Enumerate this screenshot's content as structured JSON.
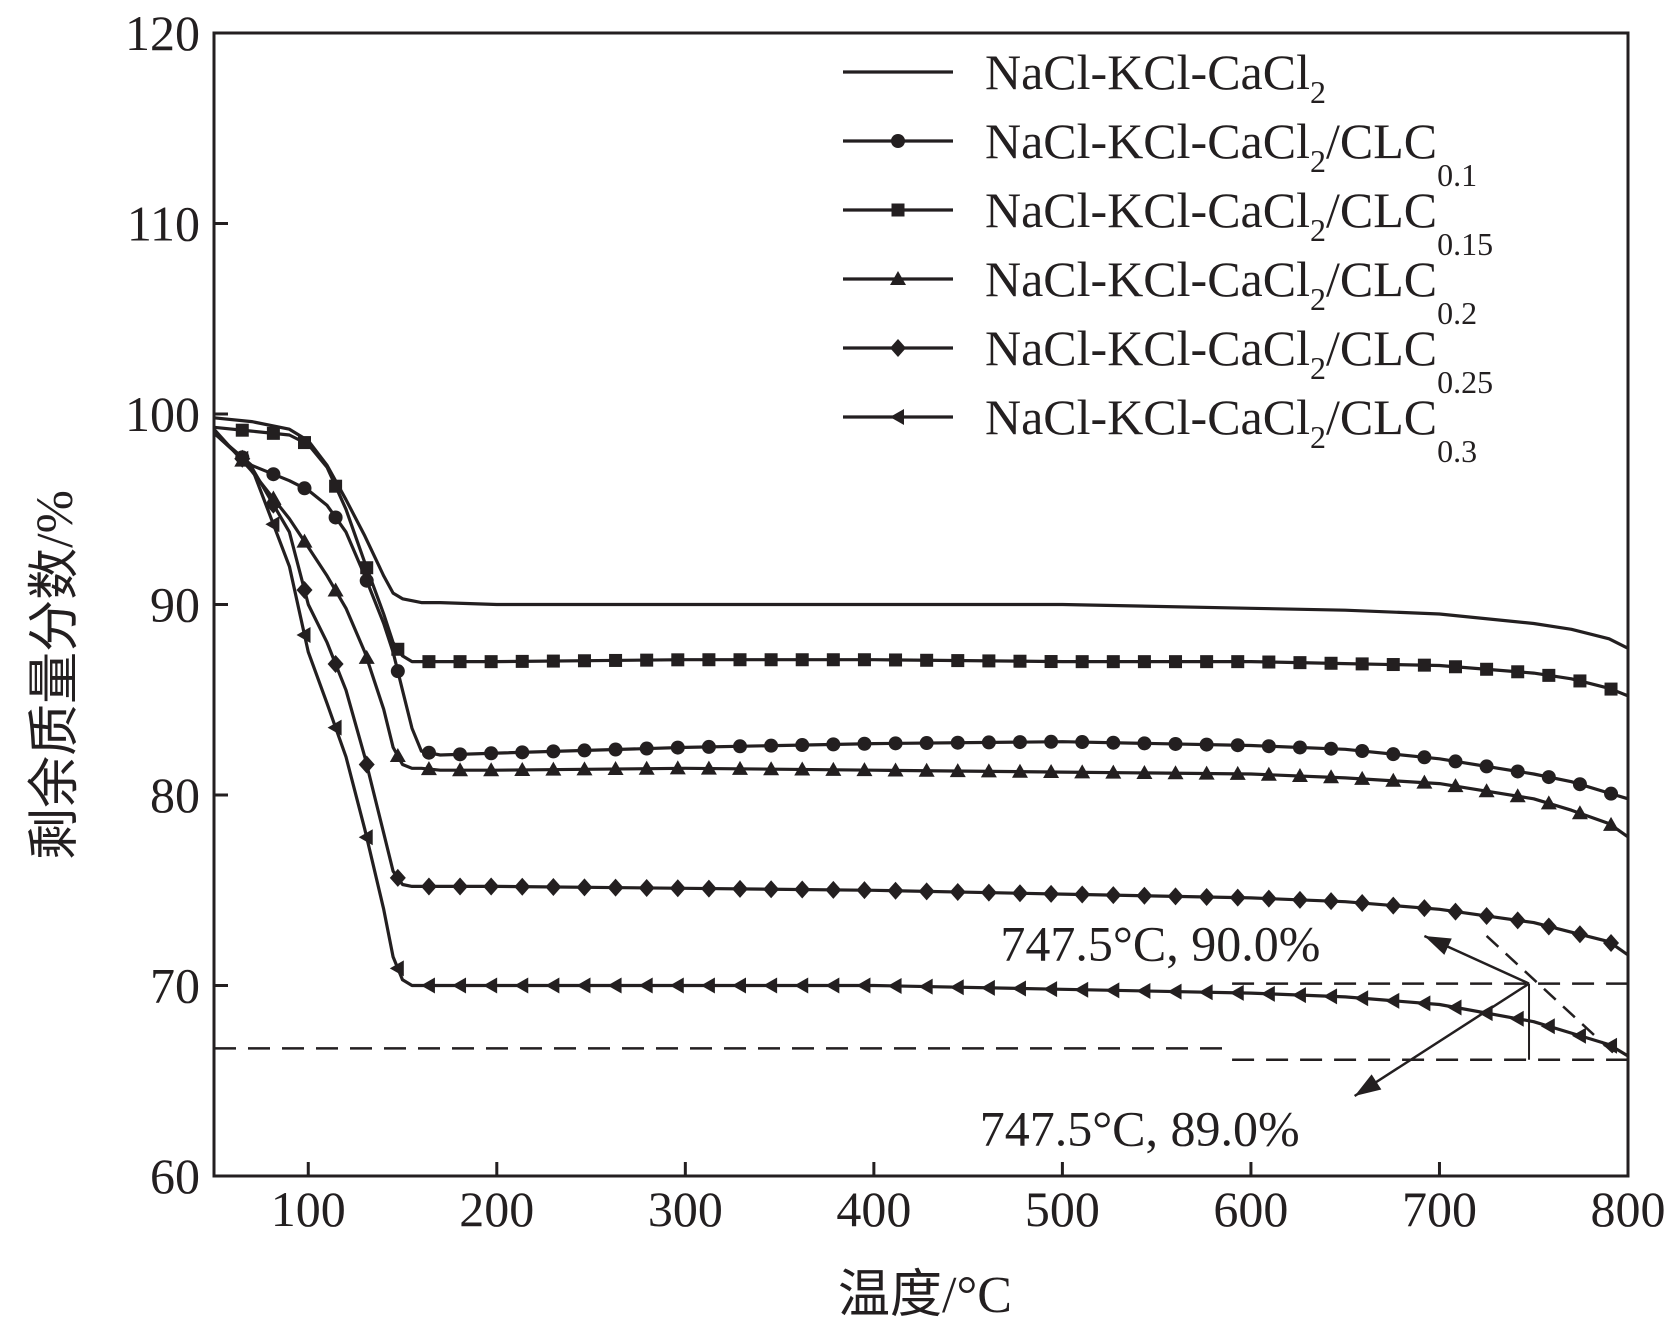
{
  "chart_data": {
    "type": "line",
    "title": "",
    "xlabel": "温度/°C",
    "ylabel": "剩余质量分数/%",
    "xlim": [
      50,
      800
    ],
    "ylim": [
      60,
      120
    ],
    "xticks": [
      100,
      200,
      300,
      400,
      500,
      600,
      700,
      800
    ],
    "yticks": [
      60,
      70,
      80,
      90,
      100,
      110,
      120
    ],
    "grid": false,
    "legend_position": "top-right",
    "x": [
      50,
      70,
      90,
      100,
      110,
      120,
      130,
      140,
      145,
      150,
      155,
      160,
      170,
      200,
      300,
      400,
      500,
      600,
      650,
      700,
      750,
      770,
      790,
      800
    ],
    "series": [
      {
        "name": "NaCl-KCl-CaCl2/CLC0.1",
        "base": "NaCl-KCl-CaCl",
        "sub2": "2",
        "tail": "/CLC",
        "sub3": "0.1",
        "marker": "circle",
        "values": [
          99.0,
          97.3,
          96.5,
          96.0,
          95.2,
          93.8,
          91.5,
          89.0,
          87.5,
          85.5,
          83.5,
          82.3,
          82.1,
          82.2,
          82.5,
          82.7,
          82.8,
          82.6,
          82.4,
          81.9,
          81.1,
          80.7,
          80.1,
          79.8
        ]
      },
      {
        "name": "NaCl-KCl-CaCl2",
        "base": "NaCl-KCl-CaCl",
        "sub2": "2",
        "tail": "",
        "sub3": "",
        "marker": "none",
        "values": [
          99.8,
          99.6,
          99.2,
          98.6,
          97.3,
          95.5,
          93.6,
          91.5,
          90.6,
          90.3,
          90.2,
          90.1,
          90.1,
          90.0,
          90.0,
          90.0,
          90.0,
          89.8,
          89.7,
          89.5,
          89.0,
          88.7,
          88.2,
          87.7
        ]
      },
      {
        "name": "NaCl-KCl-CaCl2/CLC0.15",
        "base": "NaCl-KCl-CaCl",
        "sub2": "2",
        "tail": "/CLC",
        "sub3": "0.15",
        "marker": "square",
        "values": [
          99.3,
          99.1,
          98.9,
          98.4,
          97.2,
          95.0,
          92.2,
          89.5,
          88.0,
          87.3,
          87.0,
          87.0,
          87.0,
          87.0,
          87.1,
          87.1,
          87.0,
          87.0,
          86.9,
          86.8,
          86.4,
          86.1,
          85.6,
          85.2
        ]
      },
      {
        "name": "NaCl-KCl-CaCl2/CLC0.2",
        "base": "NaCl-KCl-CaCl",
        "sub2": "2",
        "tail": "/CLC",
        "sub3": "0.2",
        "marker": "triangle",
        "values": [
          99.2,
          97.0,
          94.5,
          93.0,
          91.5,
          89.8,
          87.5,
          84.5,
          82.5,
          81.6,
          81.4,
          81.4,
          81.3,
          81.3,
          81.4,
          81.3,
          81.2,
          81.1,
          80.9,
          80.6,
          79.8,
          79.2,
          78.5,
          77.8
        ]
      },
      {
        "name": "NaCl-KCl-CaCl2/CLC0.25",
        "base": "NaCl-KCl-CaCl",
        "sub2": "2",
        "tail": "/CLC",
        "sub3": "0.25",
        "marker": "diamond",
        "values": [
          99.0,
          97.2,
          93.8,
          90.0,
          88.0,
          85.5,
          82.0,
          78.0,
          76.0,
          75.3,
          75.2,
          75.2,
          75.2,
          75.2,
          75.1,
          75.0,
          74.8,
          74.6,
          74.4,
          74.0,
          73.3,
          72.8,
          72.3,
          71.6
        ]
      },
      {
        "name": "NaCl-KCl-CaCl2/CLC0.3",
        "base": "NaCl-KCl-CaCl",
        "sub2": "2",
        "tail": "/CLC",
        "sub3": "0.3",
        "marker": "triangle-left",
        "values": [
          99.0,
          97.2,
          92.0,
          87.5,
          84.8,
          82.0,
          78.2,
          74.0,
          71.5,
          70.3,
          70.0,
          70.0,
          70.0,
          70.0,
          70.0,
          70.0,
          69.8,
          69.6,
          69.4,
          69.0,
          68.1,
          67.5,
          66.9,
          66.3
        ]
      }
    ],
    "reference_lines": {
      "upper_y": 70.1,
      "lower_y": 66.1,
      "lower_full_y": 66.7,
      "x_marker": 747.5,
      "upper_x_start": 590
    },
    "annotations": [
      {
        "text": "747.5°C, 90.0%",
        "x": 552,
        "y": 72.2,
        "arrow_to": [
          692,
          72.6
        ],
        "arrow_from": [
          747.5,
          70.1
        ]
      },
      {
        "text": "747.5°C, 89.0%",
        "x": 541,
        "y": 62.5,
        "arrow_to": [
          655,
          64.2
        ],
        "arrow_from": [
          747.5,
          70.1
        ]
      }
    ],
    "tangent_line": {
      "from": [
        725,
        72.6
      ],
      "to": [
        793,
        66.4
      ]
    }
  },
  "colors": {
    "line": "#231f20",
    "background": "#ffffff"
  }
}
